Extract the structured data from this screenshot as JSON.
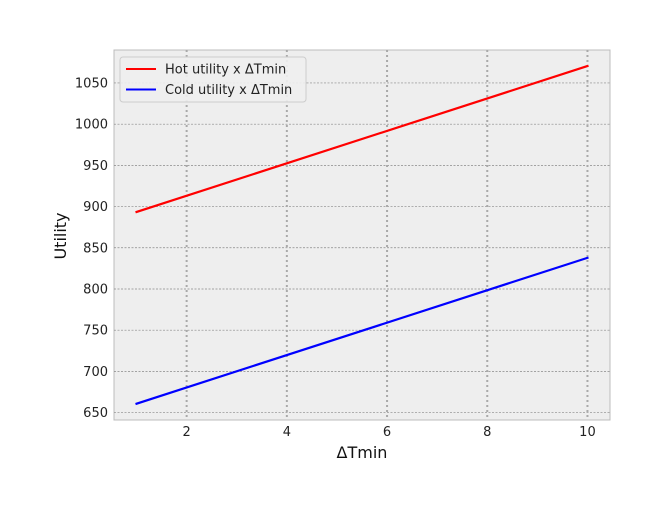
{
  "chart_data": {
    "type": "line",
    "title": "",
    "xlabel": "ΔTmin",
    "ylabel": "Utility",
    "xlim": [
      0.55,
      10.45
    ],
    "ylim": [
      641,
      1090
    ],
    "x_ticks": [
      2,
      4,
      6,
      8,
      10
    ],
    "y_ticks": [
      650,
      700,
      750,
      800,
      850,
      900,
      950,
      1000,
      1050
    ],
    "grid": true,
    "legend_position": "top-left",
    "series": [
      {
        "name": "Hot utility x ΔTmin",
        "color": "#ff0000",
        "x": [
          1,
          10
        ],
        "y": [
          893.5,
          1070.5
        ]
      },
      {
        "name": "Cold utility x ΔTmin",
        "color": "#0000ff",
        "x": [
          1,
          10
        ],
        "y": [
          660.8,
          837.8
        ]
      }
    ]
  }
}
